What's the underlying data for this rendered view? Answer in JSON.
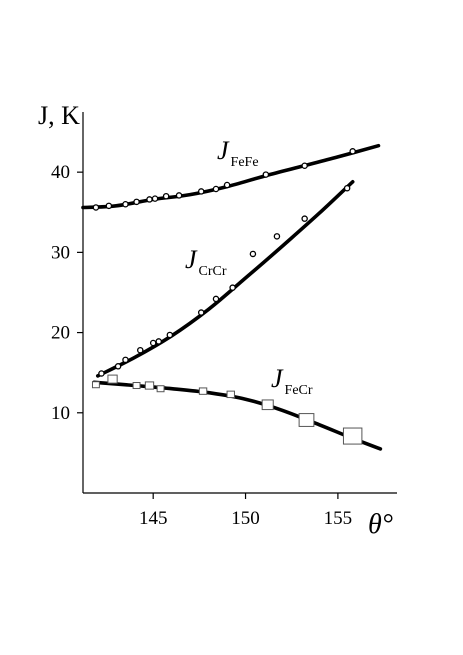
{
  "chart_data": {
    "type": "scatter",
    "title": "",
    "xlabel": "θ°",
    "ylabel": "J, K",
    "xlim": [
      141.2,
      158.2
    ],
    "ylim": [
      0,
      47.5
    ],
    "xticks": [
      145,
      150,
      155
    ],
    "yticks": [
      10,
      20,
      30,
      40
    ],
    "grid": false,
    "legend": "none",
    "series": [
      {
        "name": "J_FeFe",
        "label_main": "J",
        "label_sub": "FeFe",
        "marker": "circle",
        "points": [
          [
            141.9,
            35.6
          ],
          [
            142.6,
            35.8
          ],
          [
            143.5,
            36.0
          ],
          [
            144.1,
            36.3
          ],
          [
            144.8,
            36.6
          ],
          [
            145.1,
            36.7
          ],
          [
            145.7,
            37.0
          ],
          [
            146.4,
            37.1
          ],
          [
            147.6,
            37.6
          ],
          [
            148.4,
            37.9
          ],
          [
            149.0,
            38.4
          ],
          [
            151.1,
            39.7
          ],
          [
            153.2,
            40.8
          ],
          [
            155.8,
            42.6
          ]
        ],
        "curve": [
          [
            141.2,
            35.6
          ],
          [
            143.0,
            35.8
          ],
          [
            145.0,
            36.6
          ],
          [
            147.0,
            37.2
          ],
          [
            149.0,
            38.2
          ],
          [
            151.0,
            39.5
          ],
          [
            153.0,
            40.7
          ],
          [
            155.0,
            41.9
          ],
          [
            157.2,
            43.3
          ]
        ]
      },
      {
        "name": "J_CrCr",
        "label_main": "J",
        "label_sub": "CrCr",
        "marker": "circle",
        "points": [
          [
            142.2,
            14.9
          ],
          [
            143.1,
            15.8
          ],
          [
            143.5,
            16.6
          ],
          [
            144.3,
            17.8
          ],
          [
            145.0,
            18.7
          ],
          [
            145.3,
            18.9
          ],
          [
            145.9,
            19.7
          ],
          [
            147.6,
            22.5
          ],
          [
            148.4,
            24.2
          ],
          [
            149.3,
            25.6
          ],
          [
            150.4,
            29.8
          ],
          [
            151.7,
            32.0
          ],
          [
            153.2,
            34.2
          ],
          [
            155.5,
            38.0
          ]
        ],
        "curve": [
          [
            142.0,
            14.6
          ],
          [
            144.0,
            16.9
          ],
          [
            146.0,
            19.6
          ],
          [
            148.0,
            22.9
          ],
          [
            150.0,
            26.8
          ],
          [
            152.0,
            30.8
          ],
          [
            154.0,
            34.9
          ],
          [
            155.8,
            38.8
          ]
        ]
      },
      {
        "name": "J_FeCr",
        "label_main": "J",
        "label_sub": "FeCr",
        "marker": "square",
        "points": [
          [
            141.9,
            13.5,
            0.7
          ],
          [
            142.8,
            14.2,
            1.0
          ],
          [
            144.1,
            13.4,
            0.6
          ],
          [
            144.8,
            13.4,
            0.9
          ],
          [
            145.4,
            13.0,
            0.5
          ],
          [
            147.7,
            12.7,
            0.8
          ],
          [
            149.2,
            12.3,
            0.8
          ],
          [
            151.2,
            11.0,
            1.2
          ],
          [
            153.3,
            9.1,
            1.6
          ],
          [
            155.8,
            7.1,
            2.0
          ]
        ],
        "curve": [
          [
            141.8,
            13.8
          ],
          [
            144.0,
            13.4
          ],
          [
            146.0,
            13.0
          ],
          [
            148.0,
            12.5
          ],
          [
            150.0,
            11.7
          ],
          [
            152.0,
            10.3
          ],
          [
            154.0,
            8.5
          ],
          [
            155.6,
            7.0
          ],
          [
            157.3,
            5.5
          ]
        ]
      }
    ]
  }
}
